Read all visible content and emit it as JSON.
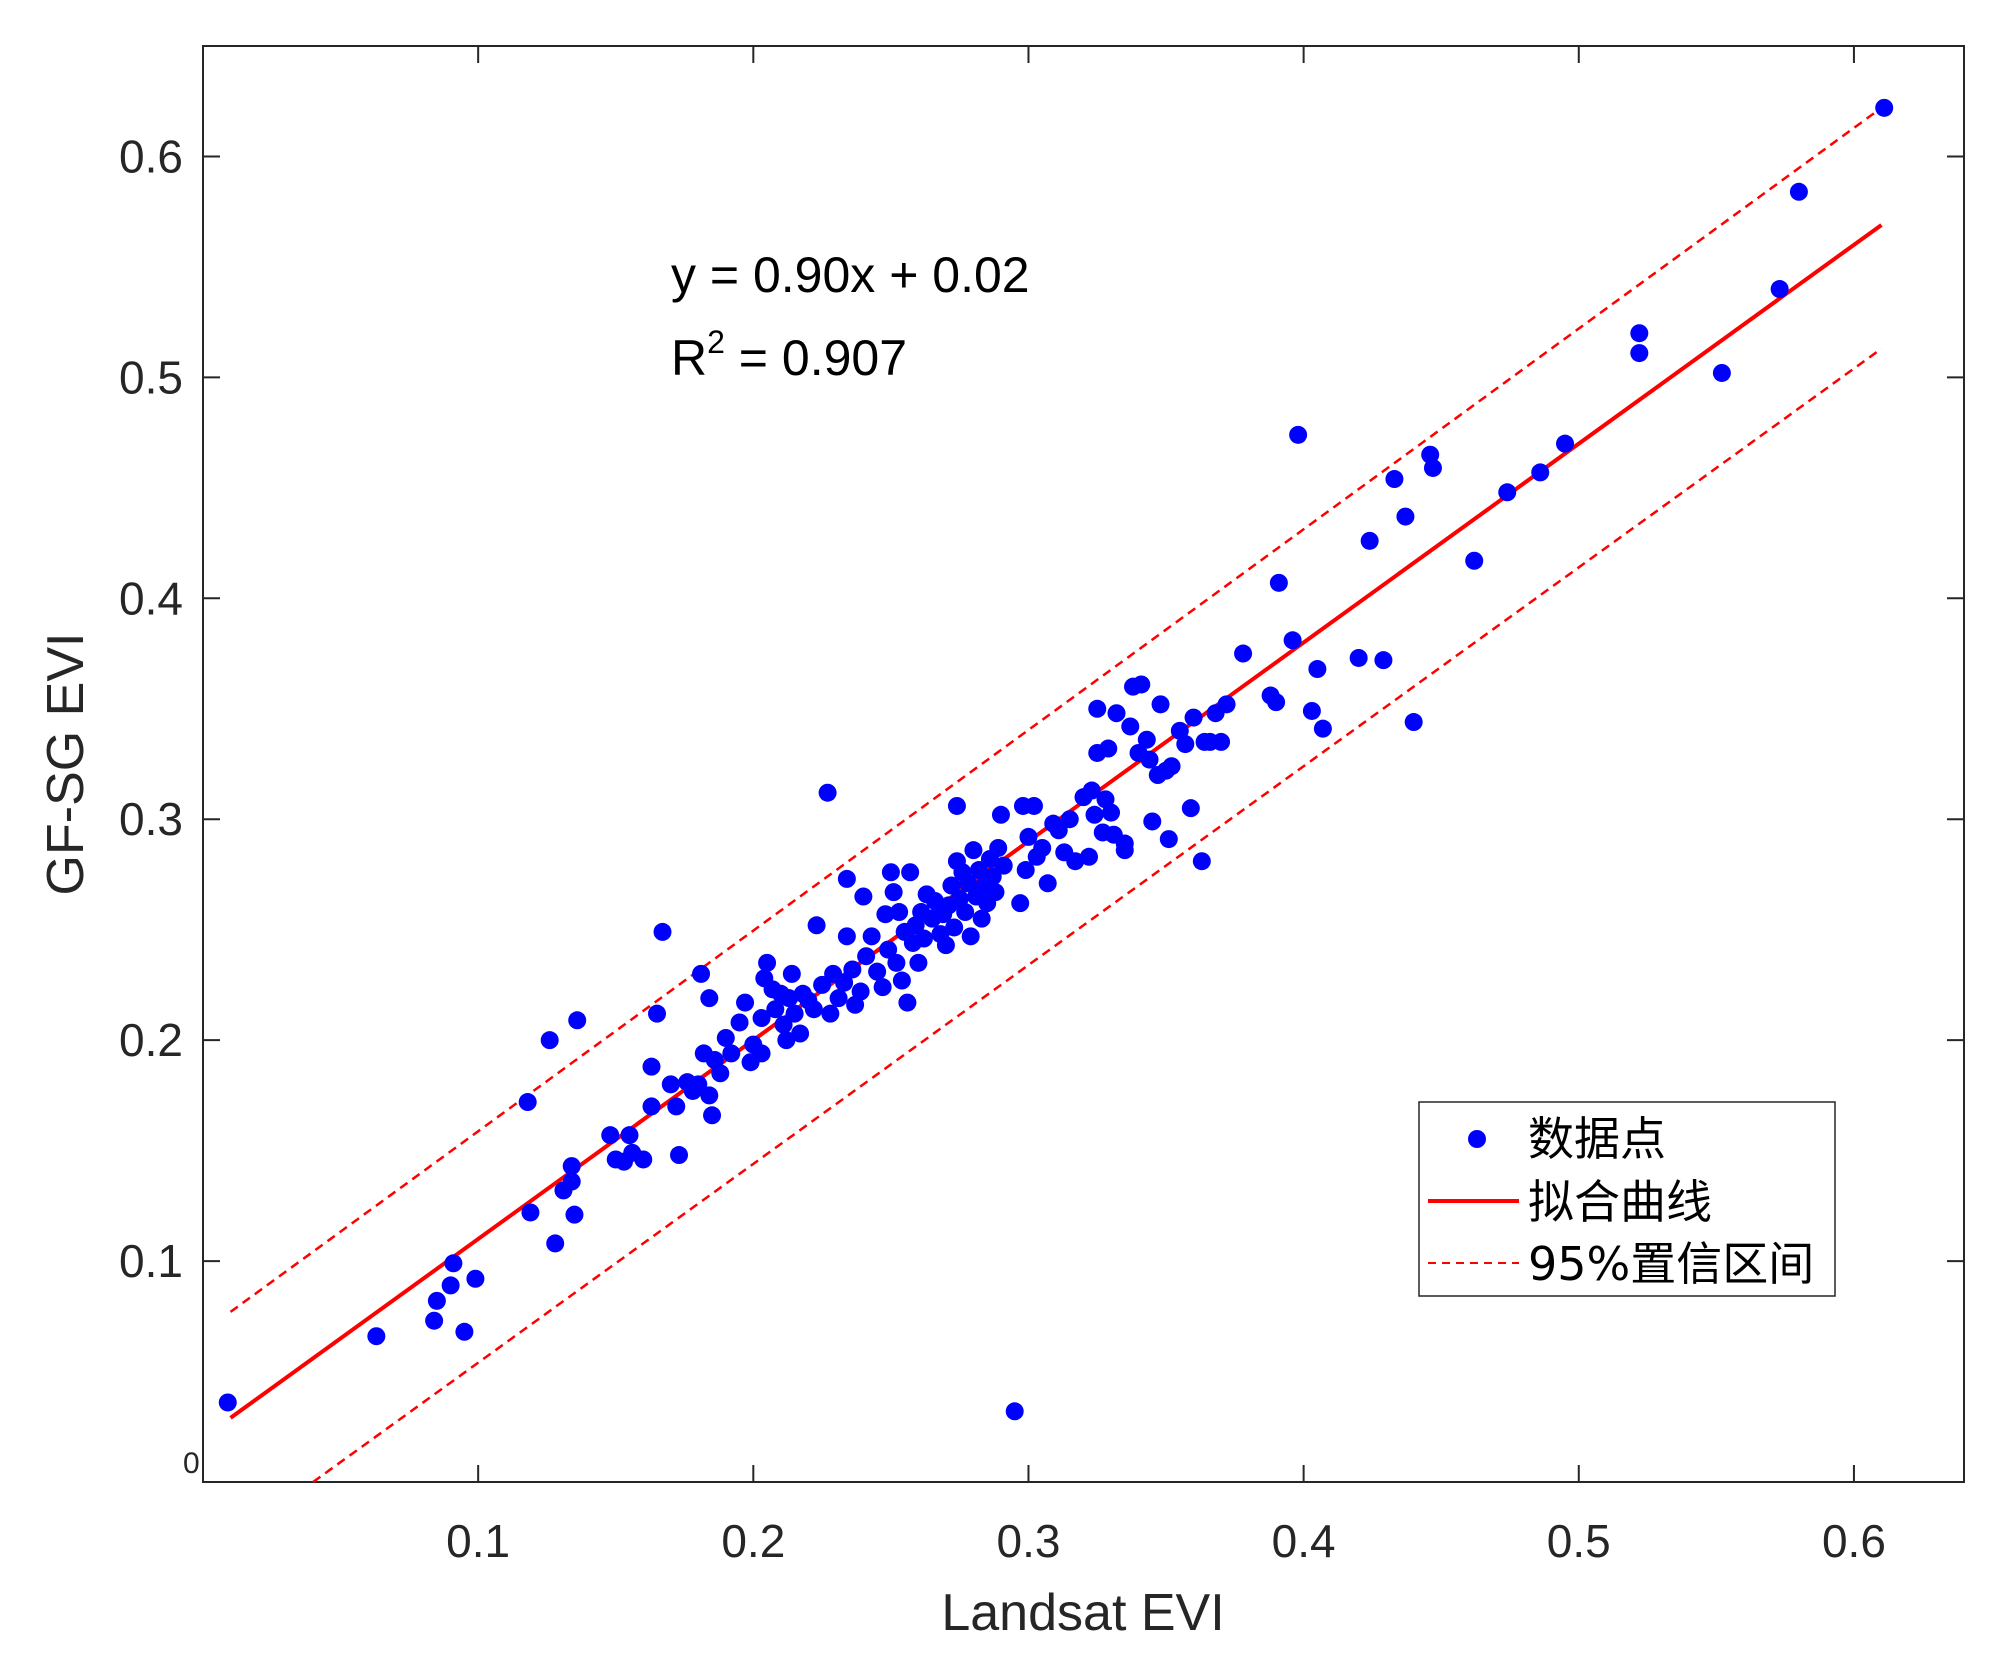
{
  "chart_data": {
    "type": "scatter",
    "xlabel": "Landsat EVI",
    "ylabel": "GF-SG EVI",
    "xlim": [
      0.0,
      0.64
    ],
    "ylim": [
      0.0,
      0.65
    ],
    "xticks": [
      0.1,
      0.2,
      0.3,
      0.4,
      0.5,
      0.6
    ],
    "xtick_labels": [
      "0.1",
      "0.2",
      "0.3",
      "0.4",
      "0.5",
      "0.6"
    ],
    "yticks": [
      0.1,
      0.2,
      0.3,
      0.4,
      0.5,
      0.6
    ],
    "ytick_labels": [
      "0.1",
      "0.2",
      "0.3",
      "0.4",
      "0.5",
      "0.6"
    ],
    "origin_label": "0",
    "grid": false,
    "annotation": {
      "equation": "y = 0.90x + 0.02",
      "r2_prefix": "R",
      "r2_sup": "2",
      "r2_suffix": " = 0.907"
    },
    "legend": {
      "placement": "bottom-right",
      "entries": [
        "数据点",
        "拟合曲线",
        "95%置信区间"
      ]
    },
    "colors": {
      "points": "#0000ff",
      "fit": "#ff0000",
      "ci": "#ff0000",
      "axes": "#262626"
    },
    "fit_line": {
      "slope": 0.9,
      "intercept": 0.02,
      "x_range": [
        0.01,
        0.61
      ]
    },
    "ci_upper": {
      "x": [
        0.01,
        0.61
      ],
      "y": [
        0.077,
        0.622
      ]
    },
    "ci_lower": {
      "x": [
        0.04,
        0.61
      ],
      "y": [
        0.0,
        0.513
      ]
    },
    "series": [
      {
        "marker": "dot",
        "points": [
          [
            0.009,
            0.036
          ],
          [
            0.063,
            0.066
          ],
          [
            0.084,
            0.073
          ],
          [
            0.085,
            0.082
          ],
          [
            0.09,
            0.089
          ],
          [
            0.091,
            0.099
          ],
          [
            0.095,
            0.068
          ],
          [
            0.099,
            0.092
          ],
          [
            0.118,
            0.172
          ],
          [
            0.119,
            0.122
          ],
          [
            0.126,
            0.2
          ],
          [
            0.128,
            0.108
          ],
          [
            0.131,
            0.132
          ],
          [
            0.134,
            0.136
          ],
          [
            0.134,
            0.143
          ],
          [
            0.135,
            0.121
          ],
          [
            0.136,
            0.209
          ],
          [
            0.148,
            0.157
          ],
          [
            0.15,
            0.146
          ],
          [
            0.153,
            0.145
          ],
          [
            0.155,
            0.157
          ],
          [
            0.156,
            0.149
          ],
          [
            0.16,
            0.146
          ],
          [
            0.163,
            0.188
          ],
          [
            0.163,
            0.17
          ],
          [
            0.165,
            0.212
          ],
          [
            0.167,
            0.249
          ],
          [
            0.17,
            0.18
          ],
          [
            0.172,
            0.17
          ],
          [
            0.173,
            0.148
          ],
          [
            0.176,
            0.181
          ],
          [
            0.178,
            0.177
          ],
          [
            0.18,
            0.18
          ],
          [
            0.181,
            0.23
          ],
          [
            0.182,
            0.194
          ],
          [
            0.184,
            0.219
          ],
          [
            0.184,
            0.175
          ],
          [
            0.185,
            0.166
          ],
          [
            0.186,
            0.191
          ],
          [
            0.188,
            0.185
          ],
          [
            0.19,
            0.201
          ],
          [
            0.192,
            0.194
          ],
          [
            0.195,
            0.208
          ],
          [
            0.197,
            0.217
          ],
          [
            0.199,
            0.19
          ],
          [
            0.2,
            0.198
          ],
          [
            0.203,
            0.194
          ],
          [
            0.203,
            0.21
          ],
          [
            0.204,
            0.228
          ],
          [
            0.205,
            0.235
          ],
          [
            0.207,
            0.223
          ],
          [
            0.208,
            0.214
          ],
          [
            0.21,
            0.221
          ],
          [
            0.211,
            0.207
          ],
          [
            0.212,
            0.2
          ],
          [
            0.213,
            0.219
          ],
          [
            0.214,
            0.23
          ],
          [
            0.215,
            0.212
          ],
          [
            0.217,
            0.203
          ],
          [
            0.218,
            0.221
          ],
          [
            0.22,
            0.218
          ],
          [
            0.222,
            0.214
          ],
          [
            0.223,
            0.252
          ],
          [
            0.225,
            0.225
          ],
          [
            0.227,
            0.312
          ],
          [
            0.228,
            0.212
          ],
          [
            0.229,
            0.23
          ],
          [
            0.231,
            0.219
          ],
          [
            0.233,
            0.226
          ],
          [
            0.234,
            0.247
          ],
          [
            0.234,
            0.273
          ],
          [
            0.236,
            0.232
          ],
          [
            0.237,
            0.216
          ],
          [
            0.239,
            0.222
          ],
          [
            0.24,
            0.265
          ],
          [
            0.241,
            0.238
          ],
          [
            0.243,
            0.247
          ],
          [
            0.245,
            0.231
          ],
          [
            0.247,
            0.224
          ],
          [
            0.248,
            0.257
          ],
          [
            0.249,
            0.241
          ],
          [
            0.25,
            0.276
          ],
          [
            0.251,
            0.267
          ],
          [
            0.252,
            0.235
          ],
          [
            0.253,
            0.258
          ],
          [
            0.254,
            0.227
          ],
          [
            0.255,
            0.249
          ],
          [
            0.256,
            0.217
          ],
          [
            0.257,
            0.276
          ],
          [
            0.258,
            0.244
          ],
          [
            0.259,
            0.252
          ],
          [
            0.26,
            0.235
          ],
          [
            0.261,
            0.258
          ],
          [
            0.262,
            0.246
          ],
          [
            0.263,
            0.266
          ],
          [
            0.265,
            0.255
          ],
          [
            0.266,
            0.263
          ],
          [
            0.268,
            0.248
          ],
          [
            0.269,
            0.257
          ],
          [
            0.27,
            0.243
          ],
          [
            0.271,
            0.261
          ],
          [
            0.272,
            0.27
          ],
          [
            0.273,
            0.251
          ],
          [
            0.274,
            0.281
          ],
          [
            0.274,
            0.306
          ],
          [
            0.275,
            0.264
          ],
          [
            0.276,
            0.276
          ],
          [
            0.277,
            0.258
          ],
          [
            0.278,
            0.271
          ],
          [
            0.279,
            0.247
          ],
          [
            0.28,
            0.286
          ],
          [
            0.281,
            0.265
          ],
          [
            0.282,
            0.277
          ],
          [
            0.283,
            0.255
          ],
          [
            0.284,
            0.27
          ],
          [
            0.285,
            0.262
          ],
          [
            0.286,
            0.282
          ],
          [
            0.287,
            0.274
          ],
          [
            0.288,
            0.267
          ],
          [
            0.289,
            0.287
          ],
          [
            0.29,
            0.302
          ],
          [
            0.291,
            0.279
          ],
          [
            0.295,
            0.032
          ],
          [
            0.297,
            0.262
          ],
          [
            0.298,
            0.306
          ],
          [
            0.299,
            0.277
          ],
          [
            0.3,
            0.292
          ],
          [
            0.302,
            0.306
          ],
          [
            0.303,
            0.283
          ],
          [
            0.305,
            0.287
          ],
          [
            0.307,
            0.271
          ],
          [
            0.309,
            0.298
          ],
          [
            0.311,
            0.295
          ],
          [
            0.313,
            0.285
          ],
          [
            0.315,
            0.3
          ],
          [
            0.317,
            0.281
          ],
          [
            0.32,
            0.31
          ],
          [
            0.322,
            0.283
          ],
          [
            0.323,
            0.313
          ],
          [
            0.324,
            0.302
          ],
          [
            0.325,
            0.33
          ],
          [
            0.325,
            0.35
          ],
          [
            0.327,
            0.294
          ],
          [
            0.328,
            0.309
          ],
          [
            0.329,
            0.332
          ],
          [
            0.33,
            0.303
          ],
          [
            0.331,
            0.293
          ],
          [
            0.332,
            0.348
          ],
          [
            0.335,
            0.289
          ],
          [
            0.335,
            0.286
          ],
          [
            0.337,
            0.342
          ],
          [
            0.338,
            0.36
          ],
          [
            0.34,
            0.33
          ],
          [
            0.341,
            0.361
          ],
          [
            0.343,
            0.336
          ],
          [
            0.344,
            0.327
          ],
          [
            0.345,
            0.299
          ],
          [
            0.347,
            0.32
          ],
          [
            0.348,
            0.352
          ],
          [
            0.35,
            0.322
          ],
          [
            0.351,
            0.291
          ],
          [
            0.352,
            0.324
          ],
          [
            0.355,
            0.34
          ],
          [
            0.357,
            0.334
          ],
          [
            0.359,
            0.305
          ],
          [
            0.36,
            0.346
          ],
          [
            0.363,
            0.281
          ],
          [
            0.364,
            0.335
          ],
          [
            0.366,
            0.335
          ],
          [
            0.368,
            0.348
          ],
          [
            0.37,
            0.335
          ],
          [
            0.372,
            0.352
          ],
          [
            0.378,
            0.375
          ],
          [
            0.388,
            0.356
          ],
          [
            0.39,
            0.353
          ],
          [
            0.391,
            0.407
          ],
          [
            0.396,
            0.381
          ],
          [
            0.398,
            0.474
          ],
          [
            0.403,
            0.349
          ],
          [
            0.405,
            0.368
          ],
          [
            0.407,
            0.341
          ],
          [
            0.42,
            0.373
          ],
          [
            0.424,
            0.426
          ],
          [
            0.429,
            0.372
          ],
          [
            0.433,
            0.454
          ],
          [
            0.437,
            0.437
          ],
          [
            0.44,
            0.344
          ],
          [
            0.446,
            0.465
          ],
          [
            0.447,
            0.459
          ],
          [
            0.462,
            0.417
          ],
          [
            0.474,
            0.448
          ],
          [
            0.486,
            0.457
          ],
          [
            0.495,
            0.47
          ],
          [
            0.522,
            0.52
          ],
          [
            0.522,
            0.511
          ],
          [
            0.552,
            0.502
          ],
          [
            0.573,
            0.54
          ],
          [
            0.58,
            0.584
          ],
          [
            0.611,
            0.622
          ]
        ]
      }
    ]
  }
}
